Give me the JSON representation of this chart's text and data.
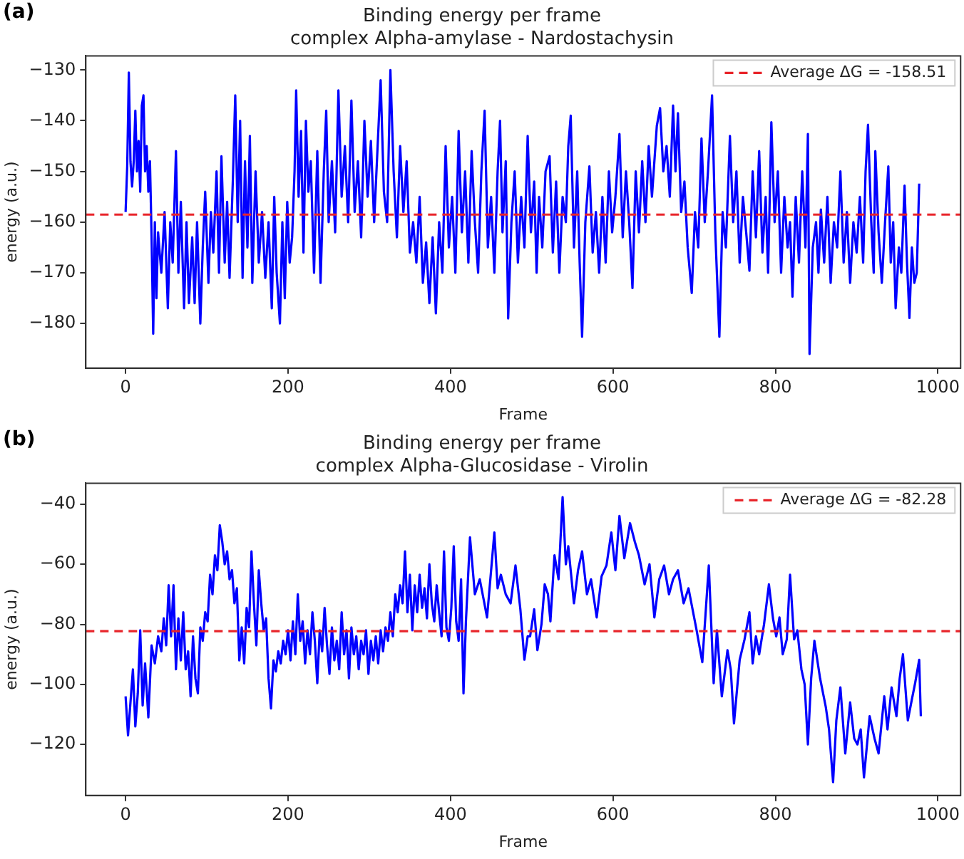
{
  "chart_data": [
    {
      "type": "line",
      "title": "Binding energy per frame",
      "subtitle": "complex Alpha-amylase - Nardostachysin",
      "xlabel": "Frame",
      "ylabel": "energy (a.u.)",
      "annotations": [
        "(a)"
      ],
      "xlim": [
        -49,
        1028
      ],
      "xticks": [
        0,
        200,
        400,
        600,
        800,
        1000
      ],
      "ylim": [
        -188.8,
        -127.2
      ],
      "yticks": [
        -180,
        -170,
        -160,
        -150,
        -140,
        -130
      ],
      "legend": "top right",
      "marker": "none",
      "line_style": "solid",
      "ref_lines": [
        {
          "axis": "y",
          "value": -158.51,
          "label": "Average ΔG = -158.51",
          "color": "#e8242a",
          "line_style": "dashed"
        }
      ],
      "series": [
        {
          "color": "#0000ff",
          "x": [
            0,
            2,
            4,
            6,
            8,
            10,
            12,
            14,
            16,
            18,
            20,
            22,
            24,
            26,
            28,
            30,
            32,
            34,
            36,
            38,
            40,
            44,
            48,
            52,
            55,
            58,
            62,
            65,
            68,
            72,
            75,
            78,
            82,
            85,
            88,
            92,
            95,
            98,
            102,
            105,
            108,
            112,
            115,
            118,
            122,
            125,
            128,
            132,
            135,
            138,
            141,
            144,
            147,
            150,
            153,
            156,
            160,
            164,
            168,
            172,
            176,
            180,
            183,
            186,
            190,
            193,
            196,
            199,
            202,
            205,
            208,
            210,
            213,
            216,
            219,
            222,
            225,
            228,
            232,
            236,
            240,
            244,
            247,
            250,
            254,
            258,
            262,
            266,
            270,
            274,
            278,
            282,
            286,
            290,
            294,
            298,
            302,
            306,
            310,
            314,
            318,
            322,
            326,
            330,
            334,
            338,
            342,
            346,
            350,
            354,
            358,
            362,
            366,
            370,
            374,
            378,
            382,
            386,
            390,
            394,
            398,
            402,
            406,
            410,
            414,
            418,
            422,
            426,
            430,
            434,
            438,
            442,
            446,
            450,
            454,
            458,
            461,
            464,
            468,
            471,
            475,
            479,
            483,
            487,
            491,
            495,
            499,
            503,
            506,
            509,
            513,
            517,
            522,
            526,
            530,
            534,
            538,
            542,
            545,
            548,
            552,
            556,
            559,
            562,
            566,
            571,
            575,
            579,
            583,
            587,
            591,
            595,
            599,
            603,
            608,
            612,
            616,
            620,
            624,
            628,
            632,
            636,
            640,
            644,
            648,
            651,
            654,
            658,
            662,
            666,
            670,
            674,
            677,
            680,
            684,
            688,
            692,
            697,
            701,
            705,
            709,
            713,
            717,
            722,
            726,
            731,
            735,
            739,
            744,
            748,
            752,
            756,
            760,
            764,
            768,
            772,
            776,
            780,
            784,
            788,
            791,
            795,
            799,
            803,
            807,
            811,
            815,
            818,
            821,
            825,
            829,
            833,
            837,
            840,
            842,
            846,
            850,
            853,
            856,
            860,
            864,
            868,
            872,
            876,
            880,
            884,
            888,
            892,
            896,
            900,
            904,
            908,
            911,
            914,
            918,
            921,
            923,
            927,
            931,
            935,
            939,
            942,
            945,
            948,
            952,
            955,
            959,
            962,
            965,
            968,
            971,
            974,
            977
          ],
          "values": [
            -158,
            -149,
            -130.5,
            -148,
            -153,
            -148,
            -138,
            -150,
            -144,
            -154,
            -137,
            -135,
            -150,
            -145,
            -154,
            -148,
            -163,
            -182,
            -160,
            -175,
            -162,
            -170,
            -158,
            -177,
            -160,
            -168,
            -146,
            -170,
            -156,
            -177,
            -160,
            -176,
            -163,
            -176,
            -160,
            -180,
            -165,
            -154,
            -172,
            -158,
            -166,
            -150,
            -170,
            -147,
            -168,
            -156,
            -171,
            -152,
            -135,
            -160,
            -140,
            -171,
            -148,
            -165,
            -143,
            -172,
            -150,
            -168,
            -158,
            -171,
            -160,
            -177,
            -155,
            -170,
            -180,
            -160,
            -175,
            -156,
            -168,
            -163,
            -150,
            -134,
            -155,
            -142,
            -166,
            -140,
            -154,
            -148,
            -170,
            -146,
            -172,
            -150,
            -138,
            -160,
            -148,
            -162,
            -134,
            -155,
            -145,
            -160,
            -136,
            -158,
            -148,
            -163,
            -140,
            -155,
            -144,
            -160,
            -146,
            -132,
            -154,
            -160,
            -130,
            -150,
            -163,
            -145,
            -158,
            -148,
            -166,
            -160,
            -168,
            -155,
            -172,
            -164,
            -176,
            -163,
            -178,
            -160,
            -170,
            -145,
            -165,
            -155,
            -170,
            -142,
            -162,
            -150,
            -168,
            -146,
            -160,
            -170,
            -150,
            -138,
            -165,
            -155,
            -170,
            -150,
            -140,
            -162,
            -148,
            -179,
            -160,
            -150,
            -168,
            -155,
            -165,
            -143,
            -162,
            -152,
            -170,
            -155,
            -165,
            -150,
            -147,
            -166,
            -152,
            -170,
            -155,
            -160,
            -145,
            -139,
            -165,
            -150,
            -168,
            -182.6,
            -160,
            -149,
            -166,
            -158,
            -170,
            -155,
            -168,
            -150,
            -162,
            -155,
            -142.6,
            -163,
            -150,
            -160,
            -173,
            -150,
            -162,
            -148,
            -160,
            -145,
            -155,
            -148,
            -141,
            -137.5,
            -150,
            -145,
            -155,
            -137,
            -150,
            -138.5,
            -158,
            -152,
            -165,
            -174,
            -158,
            -165,
            -143.5,
            -160,
            -150,
            -135,
            -162,
            -182.6,
            -158,
            -165,
            -143,
            -160,
            -150,
            -168,
            -155,
            -162,
            -169.6,
            -150,
            -163,
            -146,
            -166,
            -155,
            -170,
            -140.3,
            -160,
            -150,
            -170,
            -155,
            -165,
            -160,
            -174.7,
            -155,
            -168,
            -150,
            -165,
            -142.6,
            -186,
            -165,
            -160,
            -170,
            -157.5,
            -168,
            -155,
            -172,
            -160,
            -165,
            -150,
            -168,
            -158,
            -172,
            -160,
            -166,
            -155,
            -168,
            -150,
            -140.8,
            -160,
            -170,
            -146,
            -162,
            -172,
            -160,
            -149,
            -168,
            -160,
            -177,
            -165,
            -170,
            -152.8,
            -168,
            -178.9,
            -165,
            -172,
            -170,
            -152.4
          ]
        }
      ]
    },
    {
      "type": "line",
      "title": "Binding energy per frame",
      "subtitle": "complex Alpha-Glucosidase - Virolin",
      "xlabel": "Frame",
      "ylabel": "energy (a.u.)",
      "annotations": [
        "(b)"
      ],
      "xlim": [
        -49,
        1028
      ],
      "xticks": [
        0,
        200,
        400,
        600,
        800,
        1000
      ],
      "ylim": [
        -137,
        -33
      ],
      "yticks": [
        -120,
        -100,
        -80,
        -60,
        -40
      ],
      "legend": "top right",
      "marker": "none",
      "line_style": "solid",
      "ref_lines": [
        {
          "axis": "y",
          "value": -82.28,
          "label": "Average ΔG = -82.28",
          "color": "#e8242a",
          "line_style": "dashed"
        }
      ],
      "series": [
        {
          "color": "#0000ff",
          "x": [
            0,
            3,
            6,
            9,
            12,
            15,
            18,
            21,
            24,
            28,
            32,
            36,
            40,
            44,
            47,
            50,
            53,
            56,
            59,
            62,
            65,
            68,
            71,
            74,
            77,
            80,
            83,
            86,
            89,
            92,
            95,
            98,
            101,
            104,
            107,
            110,
            113,
            116,
            119,
            122,
            125,
            128,
            131,
            134,
            137,
            140,
            143,
            146,
            149,
            152,
            155,
            158,
            161,
            164,
            167,
            170,
            173,
            176,
            179,
            182,
            185,
            188,
            191,
            194,
            197,
            200,
            203,
            206,
            209,
            212,
            215,
            218,
            221,
            224,
            227,
            230,
            233,
            236,
            239,
            242,
            245,
            248,
            251,
            254,
            257,
            260,
            263,
            266,
            269,
            272,
            275,
            278,
            281,
            284,
            287,
            290,
            293,
            296,
            299,
            302,
            305,
            308,
            311,
            314,
            317,
            320,
            323,
            326,
            329,
            332,
            335,
            338,
            341,
            344,
            347,
            350,
            353,
            356,
            359,
            362,
            365,
            368,
            371,
            374,
            377,
            380,
            383,
            386,
            389,
            392,
            395,
            398,
            401,
            404,
            407,
            410,
            413,
            416,
            419,
            424,
            430,
            436,
            441,
            445,
            450,
            454,
            458,
            462,
            468,
            474,
            480,
            486,
            491,
            495,
            498,
            503,
            507,
            512,
            516,
            520,
            523,
            528,
            533,
            538,
            542,
            545,
            552,
            557,
            562,
            568,
            573,
            580,
            586,
            592,
            598,
            603,
            608,
            614,
            621,
            627,
            632,
            639,
            645,
            651,
            657,
            663,
            669,
            674,
            680,
            687,
            693,
            698,
            703,
            710,
            718,
            724,
            728,
            734,
            741,
            745,
            749,
            756,
            762,
            768,
            772,
            776,
            780,
            786,
            792,
            797,
            801,
            805,
            809,
            814,
            818,
            823,
            827,
            832,
            836,
            840,
            844,
            848,
            855,
            862,
            866,
            871,
            875,
            880,
            886,
            892,
            897,
            901,
            905,
            909,
            916,
            922,
            927,
            934,
            938,
            943,
            949,
            953,
            957,
            963,
            968,
            972,
            977,
            979
          ],
          "values": [
            -104,
            -117,
            -106,
            -95,
            -114,
            -103,
            -82,
            -107,
            -93,
            -111,
            -87,
            -93,
            -84,
            -89,
            -78,
            -87,
            -67,
            -84,
            -67,
            -95,
            -78,
            -92,
            -76,
            -95,
            -89,
            -104,
            -84,
            -98,
            -103,
            -81,
            -85.5,
            -76,
            -79,
            -63.5,
            -70,
            -57,
            -62,
            -47,
            -52.5,
            -60,
            -55.7,
            -65,
            -62,
            -73,
            -68,
            -92,
            -81,
            -93,
            -74.5,
            -81,
            -55.7,
            -73,
            -87,
            -62,
            -73,
            -82,
            -78,
            -98,
            -108,
            -92,
            -95.7,
            -89,
            -93,
            -85.5,
            -90,
            -82,
            -92,
            -79,
            -90,
            -70,
            -85.5,
            -79,
            -93,
            -82,
            -90,
            -76,
            -85.5,
            -99.6,
            -82,
            -89,
            -74.5,
            -87,
            -96.5,
            -81,
            -92,
            -85.5,
            -95,
            -76,
            -90,
            -82,
            -98,
            -81,
            -90,
            -84,
            -95,
            -85.5,
            -90,
            -82,
            -96.5,
            -85.5,
            -92,
            -84,
            -93,
            -82,
            -89,
            -81,
            -85.5,
            -76,
            -84,
            -70,
            -76,
            -67,
            -73,
            -55.7,
            -76,
            -63.5,
            -82,
            -67,
            -76,
            -63.5,
            -74.5,
            -68,
            -78,
            -60,
            -73,
            -79,
            -67,
            -76,
            -84,
            -55.7,
            -81,
            -85.5,
            -74.5,
            -54,
            -79,
            -85.5,
            -65,
            -103,
            -79,
            -51,
            -70,
            -65,
            -72,
            -77.7,
            -62,
            -49.4,
            -68,
            -63.5,
            -70,
            -73,
            -60.4,
            -75,
            -91.8,
            -84,
            -84,
            -75,
            -88.6,
            -80,
            -66.7,
            -70,
            -79,
            -57,
            -65,
            -37.6,
            -60,
            -54,
            -73,
            -62,
            -55.7,
            -70,
            -65,
            -77.7,
            -64,
            -60.4,
            -49.4,
            -62,
            -43.9,
            -58,
            -46.3,
            -52.6,
            -57,
            -66.7,
            -60,
            -77.7,
            -65,
            -60.4,
            -70,
            -65,
            -62,
            -73,
            -68,
            -75,
            -82,
            -92.6,
            -60.4,
            -99.6,
            -82,
            -104,
            -88.6,
            -95,
            -113,
            -91.8,
            -85,
            -76,
            -93,
            -84,
            -90,
            -80,
            -66.7,
            -78,
            -84,
            -77.7,
            -90,
            -85,
            -63.5,
            -85,
            -82,
            -95,
            -100,
            -120,
            -98,
            -85.5,
            -98,
            -107.5,
            -115,
            -132.6,
            -112,
            -101,
            -123,
            -106,
            -118,
            -120,
            -115,
            -131,
            -110.6,
            -118,
            -123,
            -104,
            -115,
            -101,
            -110.6,
            -98,
            -90,
            -112,
            -105,
            -99.6,
            -91.8,
            -110.6
          ]
        }
      ]
    }
  ]
}
